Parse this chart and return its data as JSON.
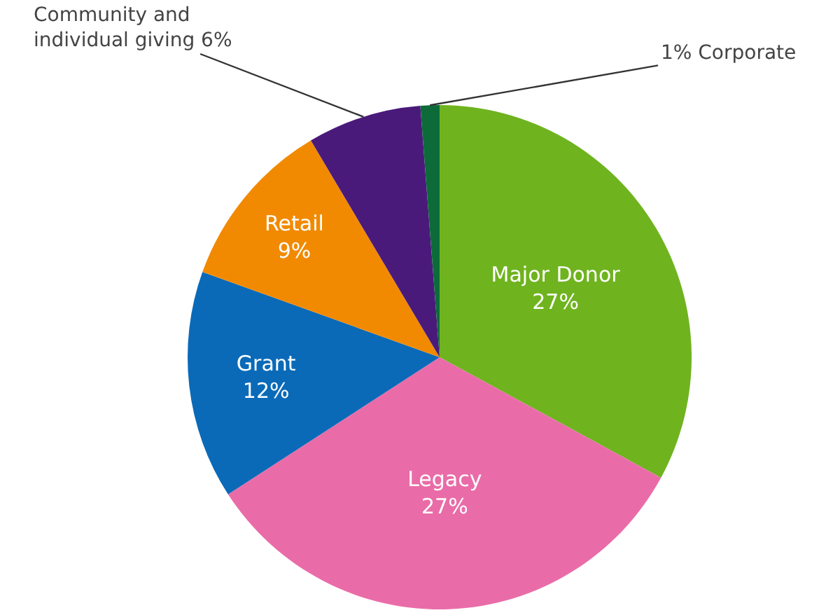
{
  "chart_data": {
    "type": "pie",
    "categories": [
      "Major Donor",
      "Legacy",
      "Grant",
      "Retail",
      "Community and individual giving",
      "Corporate"
    ],
    "values": [
      27,
      27,
      12,
      9,
      6,
      1
    ],
    "value_labels": [
      "27%",
      "27%",
      "12%",
      "9%",
      "6%",
      "1%"
    ],
    "colors": [
      "#6fb31f",
      "#e96ca8",
      "#0a6ab8",
      "#f18a00",
      "#4a1a7a",
      "#0d6b3a"
    ],
    "legend": false
  }
}
